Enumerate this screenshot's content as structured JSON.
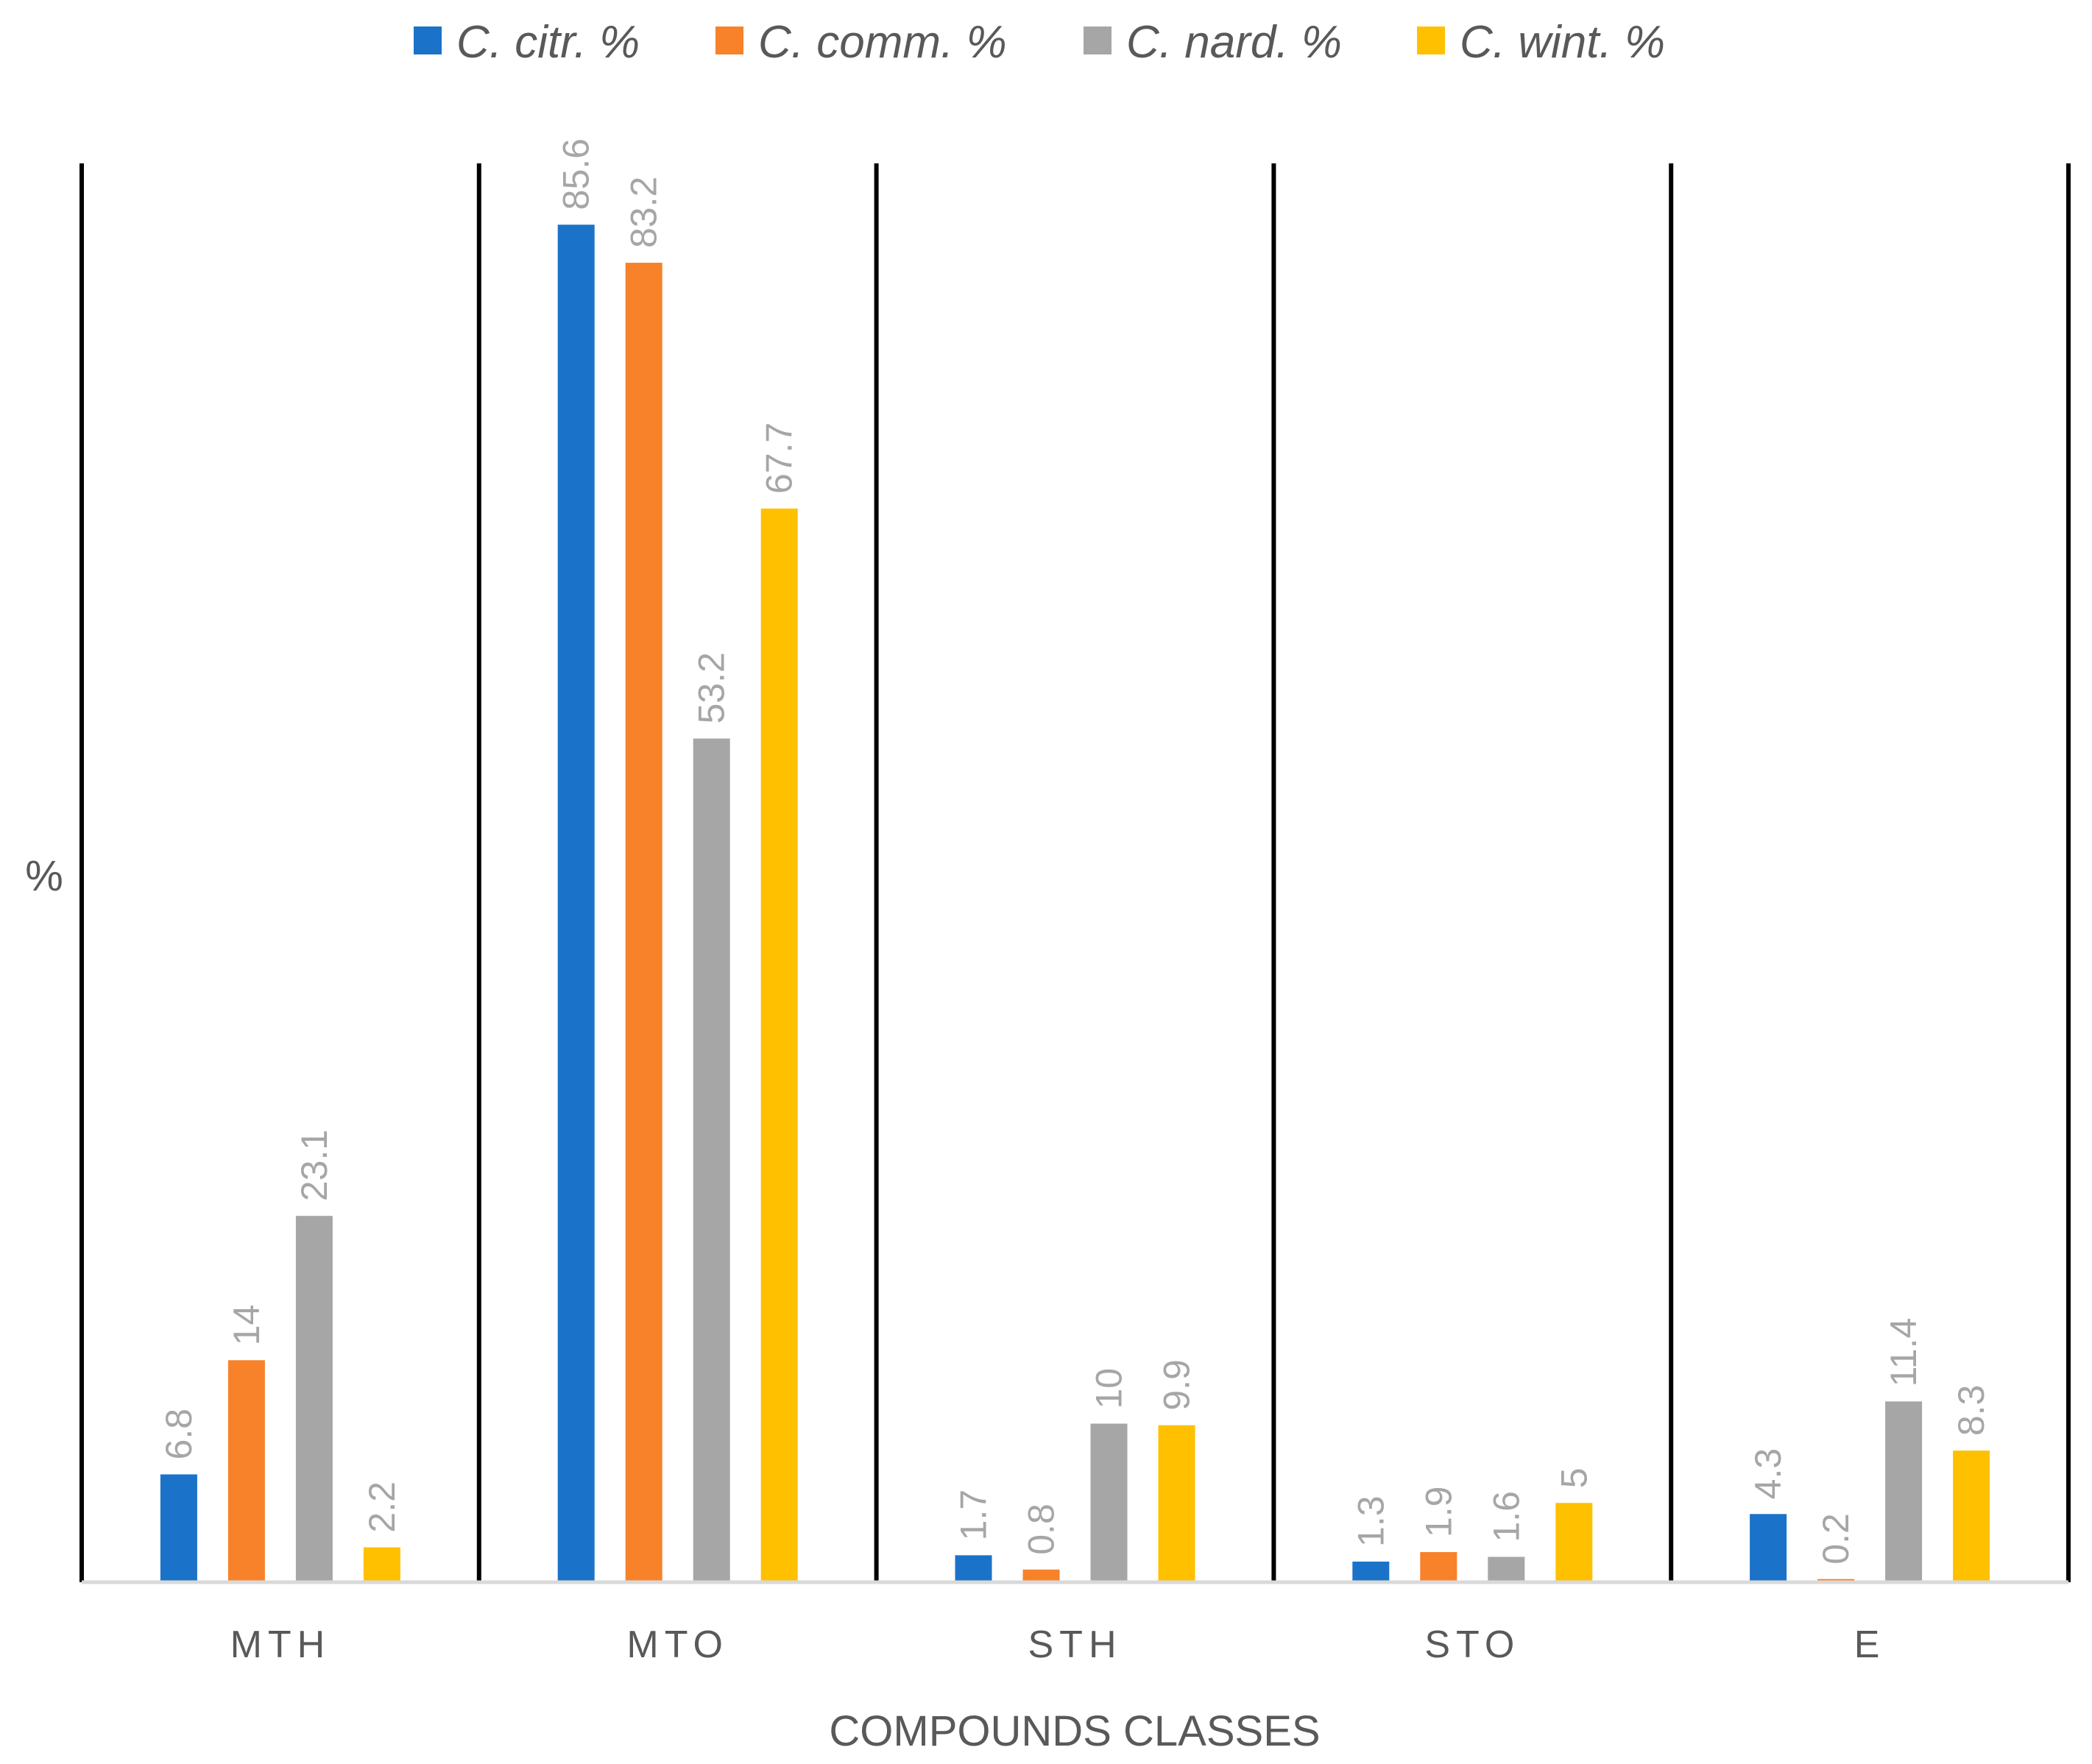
{
  "chart_data": {
    "type": "bar",
    "xlabel": "COMPOUNDS CLASSES",
    "ylabel": "%",
    "categories": [
      "MTH",
      "MTO",
      "STH",
      "STO",
      "E"
    ],
    "series": [
      {
        "name": "C. citr. %",
        "color": "#1a73c8",
        "values": [
          6.8,
          85.6,
          1.7,
          1.3,
          4.3
        ],
        "labels": [
          "6.8",
          "85.6",
          "1.7",
          "1.3",
          "4.3"
        ]
      },
      {
        "name": "C. comm. %",
        "color": "#f7822a",
        "values": [
          14,
          83.2,
          0.8,
          1.9,
          0.2
        ],
        "labels": [
          "14",
          "83.2",
          "0.8",
          "1.9",
          "0.2"
        ]
      },
      {
        "name": "C. nard. %",
        "color": "#a6a6a6",
        "values": [
          23.1,
          53.2,
          10,
          1.6,
          11.4
        ],
        "labels": [
          "23.1",
          "53.2",
          "10",
          "1.6",
          "11.4"
        ]
      },
      {
        "name": "C. wint. %",
        "color": "#ffc000",
        "values": [
          2.2,
          67.7,
          9.9,
          5,
          8.3
        ],
        "labels": [
          "2.2",
          "67.7",
          "9.9",
          "5",
          "8.3"
        ]
      }
    ],
    "ylim": [
      0,
      100
    ],
    "legend_position": "top",
    "grid": false,
    "category_separators": true,
    "data_labels": "vertical-above-bars"
  }
}
